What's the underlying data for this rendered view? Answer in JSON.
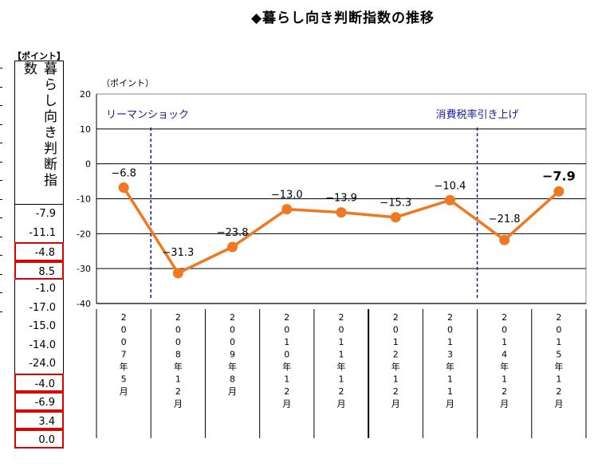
{
  "title": "◆暮らし向き判断指数の推移",
  "side_table": {
    "unit": "【ポイント】",
    "header": "暮らし向き判断指数",
    "values": [
      "-7.9",
      "-11.1",
      "-4.8",
      "8.5",
      "-1.0",
      "-17.0",
      "-15.0",
      "-14.0",
      "-24.0",
      "-4.0",
      "-6.9",
      "3.4",
      "0.0"
    ],
    "highlighted_rows": [
      2,
      3,
      9,
      10,
      11,
      12
    ],
    "highlight_color": "#e00000"
  },
  "chart_data": {
    "type": "line",
    "ylabel": "（ポイント）",
    "ylim": [
      -40,
      20
    ],
    "yticks": [
      "20",
      "10",
      "0",
      "-10",
      "-20",
      "-30",
      "-40"
    ],
    "grid": true,
    "line_color": "#f07820",
    "categories": [
      "2007年5月",
      "2008年12月",
      "2009年8月",
      "2010年12月",
      "2011年12月",
      "2012年12月",
      "2013年11月",
      "2014年12月",
      "2015年12月"
    ],
    "category_chars": [
      [
        "2",
        "0",
        "0",
        "7",
        "年",
        "5",
        "月"
      ],
      [
        "2",
        "0",
        "0",
        "8",
        "年",
        "1",
        "2",
        "月"
      ],
      [
        "2",
        "0",
        "0",
        "9",
        "年",
        "8",
        "月"
      ],
      [
        "2",
        "0",
        "1",
        "0",
        "年",
        "1",
        "2",
        "月"
      ],
      [
        "2",
        "0",
        "1",
        "1",
        "年",
        "1",
        "2",
        "月"
      ],
      [
        "2",
        "0",
        "1",
        "2",
        "年",
        "1",
        "2",
        "月"
      ],
      [
        "2",
        "0",
        "1",
        "3",
        "年",
        "1",
        "1",
        "月"
      ],
      [
        "2",
        "0",
        "1",
        "4",
        "年",
        "1",
        "2",
        "月"
      ],
      [
        "2",
        "0",
        "1",
        "5",
        "年",
        "1",
        "2",
        "月"
      ]
    ],
    "values": [
      -6.8,
      -31.3,
      -23.8,
      -13.0,
      -13.9,
      -15.3,
      -10.4,
      -21.8,
      -7.9
    ],
    "data_labels": [
      "−6.8",
      "−31.3",
      "−23.8",
      "−13.0",
      "−13.9",
      "−15.3",
      "−10.4",
      "−21.8",
      "−7.9"
    ],
    "annotations": [
      {
        "text": "リーマンショック",
        "between": [
          0,
          1
        ]
      },
      {
        "text": "消費税率引き上げ",
        "between": [
          6,
          7
        ]
      }
    ],
    "annotation_color": "#1a1aa0"
  }
}
